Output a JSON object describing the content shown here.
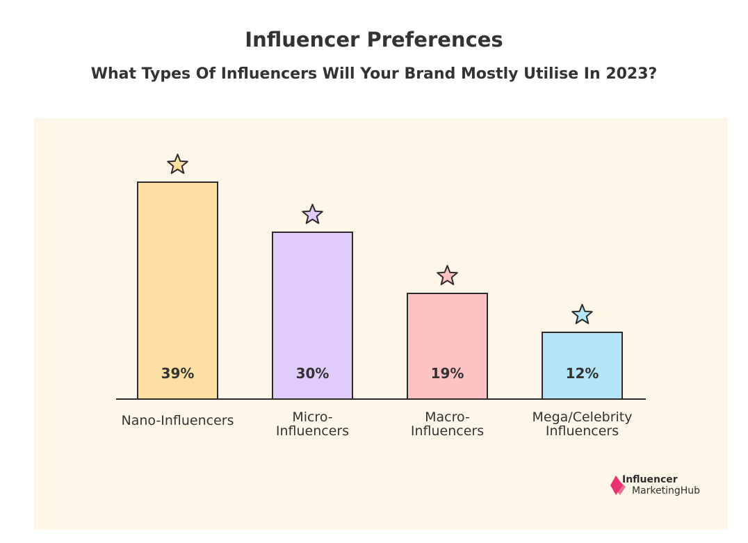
{
  "title": "Influencer Preferences",
  "subtitle": "What Types Of Influencers Will Your Brand Mostly Utilise In 2023?",
  "chart_data": {
    "type": "bar",
    "categories": [
      [
        "Nano-Influencers"
      ],
      [
        "Micro-",
        "Influencers"
      ],
      [
        "Macro-",
        "Influencers"
      ],
      [
        "Mega/Celebrity",
        "Influencers"
      ]
    ],
    "values": [
      39,
      30,
      19,
      12
    ],
    "value_labels": [
      "39%",
      "30%",
      "19%",
      "12%"
    ],
    "bar_colors": [
      "#fddea3",
      "#e0cbfb",
      "#ffc2c2",
      "#b3e4f8"
    ],
    "star_colors": [
      "#fddea3",
      "#e0cbfb",
      "#ffc2c2",
      "#b3e4f8"
    ],
    "ylim": [
      0,
      39
    ],
    "grid": false,
    "legend": "none"
  },
  "logo": {
    "line1": "Influencer",
    "line2": "MarketingHub",
    "accent": "#e8336f"
  }
}
